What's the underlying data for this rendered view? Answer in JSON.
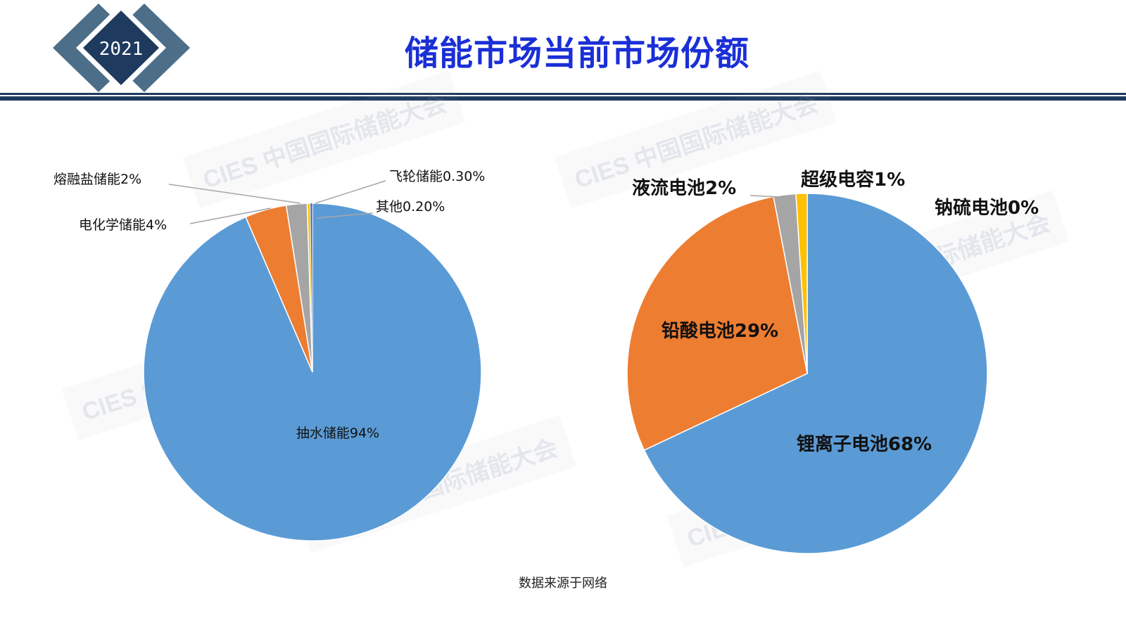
{
  "header": {
    "year": "2021",
    "title": "储能市场当前市场份额"
  },
  "watermark": "CIES 中国国际储能大会",
  "source": "数据来源于网络",
  "colors": {
    "title": "#1a2fd6",
    "rule": "#1e3a5f",
    "logo_dark": "#1e3a5f",
    "logo_mid": "#4d6e89"
  },
  "chart_data": [
    {
      "type": "pie",
      "slices": [
        {
          "name": "抽水储能",
          "value": 94,
          "color": "#5b9bd5",
          "label": "抽水储能94%"
        },
        {
          "name": "电化学储能",
          "value": 4,
          "color": "#ed7d31",
          "label": "电化学储能4%"
        },
        {
          "name": "熔融盐储能",
          "value": 2,
          "color": "#a5a5a5",
          "label": "熔融盐储能2%"
        },
        {
          "name": "飞轮储能",
          "value": 0.3,
          "color": "#ffc000",
          "label": "飞轮储能0.30%"
        },
        {
          "name": "其他",
          "value": 0.2,
          "color": "#4472c4",
          "label": "其他0.20%"
        }
      ]
    },
    {
      "type": "pie",
      "slices": [
        {
          "name": "锂离子电池",
          "value": 68,
          "color": "#5b9bd5",
          "label": "锂离子电池68%"
        },
        {
          "name": "铅酸电池",
          "value": 29,
          "color": "#ed7d31",
          "label": "铅酸电池29%"
        },
        {
          "name": "液流电池",
          "value": 2,
          "color": "#a5a5a5",
          "label": "液流电池2%"
        },
        {
          "name": "超级电容",
          "value": 1,
          "color": "#ffc000",
          "label": "超级电容1%"
        },
        {
          "name": "钠硫电池",
          "value": 0,
          "color": "#4472c4",
          "label": "钠硫电池0%"
        }
      ]
    }
  ]
}
